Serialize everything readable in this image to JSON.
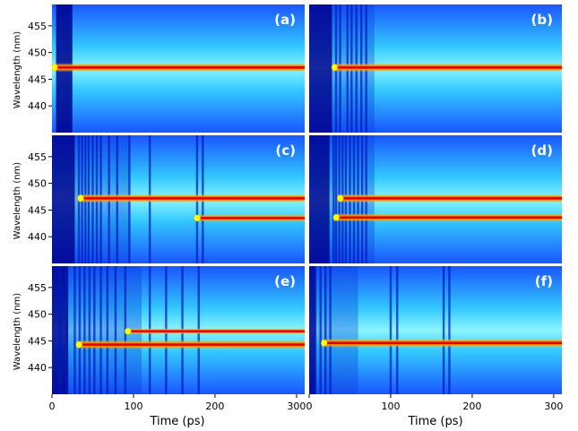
{
  "chart_data": {
    "type": "heatmap",
    "colormap": "jet",
    "colors": {
      "background": "#1a56ff",
      "low": "#00008f",
      "mid": "#00e5ff",
      "high": "#ff0000",
      "peak": "#ffff00"
    },
    "xlabel": "Time (ps)",
    "ylabel": "Wavelength (nm)",
    "xlim": [
      0,
      310
    ],
    "ylim": [
      435,
      459
    ],
    "x_ticks": [
      0,
      100,
      200,
      300
    ],
    "y_ticks": [
      440,
      445,
      450,
      455
    ],
    "panels": [
      {
        "label": "(a)",
        "lines": [
          {
            "wavelength": 447.2,
            "start": 0,
            "strength": 1.0
          }
        ],
        "dark_regions": [
          [
            5,
            25
          ]
        ],
        "stripes": [],
        "fringes": []
      },
      {
        "label": "(b)",
        "lines": [
          {
            "wavelength": 447.2,
            "start": 28,
            "strength": 1.0
          }
        ],
        "dark_regions": [
          [
            0,
            28
          ]
        ],
        "stripes": [
          33,
          38,
          47,
          52,
          58,
          64,
          70
        ],
        "fringes": [
          [
            28,
            80
          ]
        ]
      },
      {
        "label": "(c)",
        "lines": [
          {
            "wavelength": 447.2,
            "start": 32,
            "strength": 1.0
          },
          {
            "wavelength": 443.5,
            "start": 175,
            "strength": 0.85
          }
        ],
        "dark_regions": [
          [
            0,
            28
          ]
        ],
        "stripes": [
          33,
          37,
          41,
          45,
          50,
          55,
          60,
          70,
          80,
          95,
          120,
          178,
          185
        ],
        "fringes": [
          [
            28,
            95
          ]
        ]
      },
      {
        "label": "(d)",
        "lines": [
          {
            "wavelength": 447.2,
            "start": 35,
            "strength": 1.0
          },
          {
            "wavelength": 443.6,
            "start": 30,
            "strength": 0.95
          }
        ],
        "dark_regions": [
          [
            0,
            25
          ]
        ],
        "stripes": [
          30,
          33,
          37,
          41,
          45,
          50,
          55,
          60,
          65,
          70
        ],
        "fringes": [
          [
            25,
            80
          ]
        ]
      },
      {
        "label": "(e)",
        "lines": [
          {
            "wavelength": 444.3,
            "start": 30,
            "strength": 1.0
          },
          {
            "wavelength": 446.8,
            "start": 90,
            "strength": 0.7
          }
        ],
        "dark_regions": [
          [
            0,
            20
          ]
        ],
        "stripes": [
          10,
          18,
          28,
          34,
          40,
          46,
          52,
          60,
          68,
          78,
          90,
          120,
          140,
          160,
          180
        ],
        "fringes": [
          [
            20,
            110
          ]
        ]
      },
      {
        "label": "(f)",
        "lines": [
          {
            "wavelength": 444.6,
            "start": 15,
            "strength": 1.0
          }
        ],
        "dark_regions": [
          [
            0,
            8
          ]
        ],
        "stripes": [
          8,
          14,
          20,
          26,
          100,
          108,
          165,
          172
        ],
        "fringes": [
          [
            10,
            60
          ]
        ]
      }
    ]
  }
}
